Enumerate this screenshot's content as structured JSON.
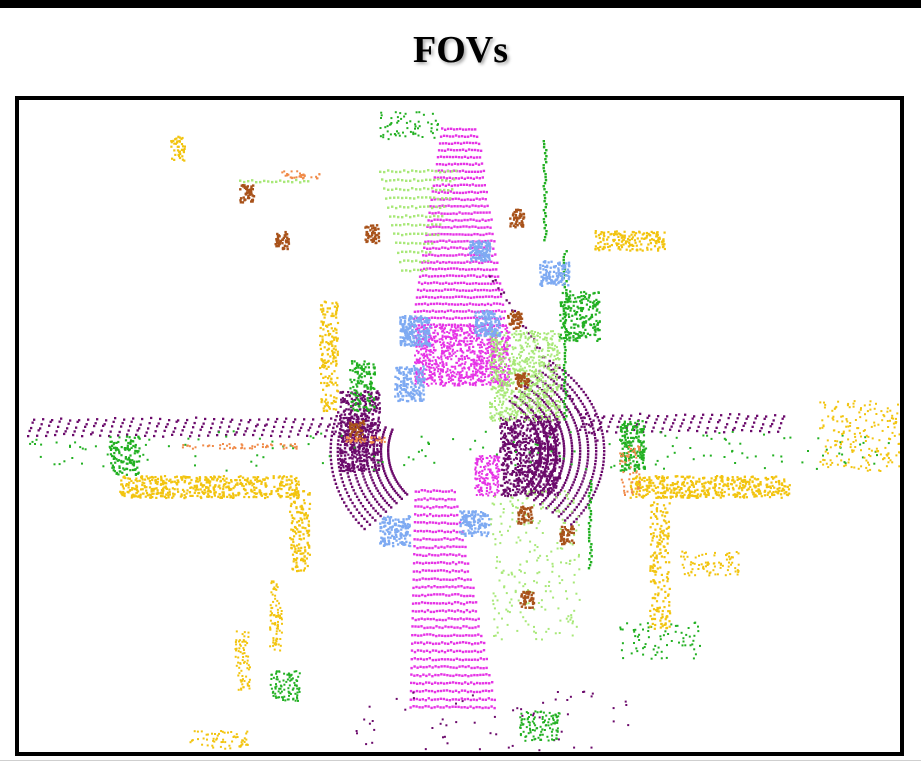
{
  "title": "FOVs",
  "colors": {
    "background": "#ffffff",
    "frame": "#000000",
    "road": "#e633e6",
    "sidewalk": "#6b0a6b",
    "vegetation": "#22b022",
    "terrain": "#a8e878",
    "building": "#f2c40f",
    "car": "#7eaaf2",
    "trunk": "#a8521a",
    "pole": "#f08a48"
  }
}
